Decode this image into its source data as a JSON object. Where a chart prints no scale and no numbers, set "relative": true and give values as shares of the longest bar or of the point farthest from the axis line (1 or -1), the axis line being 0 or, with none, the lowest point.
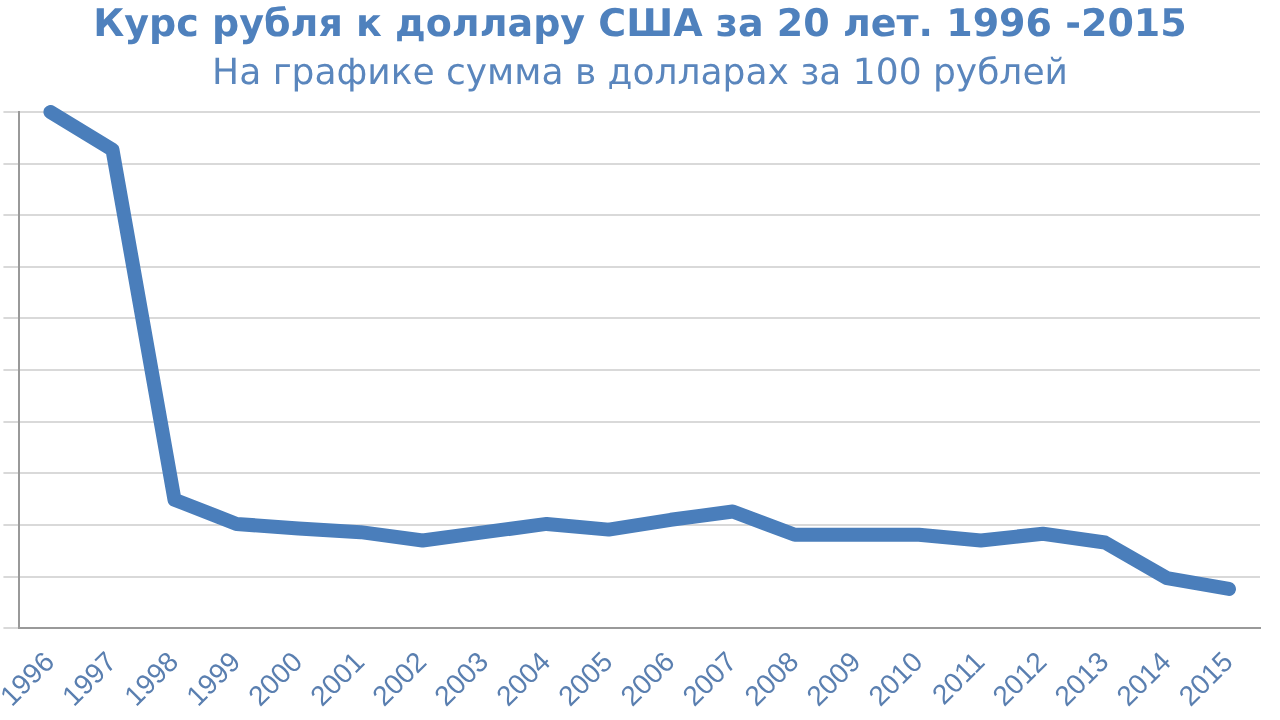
{
  "chart_data": {
    "type": "line",
    "title": "Курс рубля к доллару США за 20 лет. 1996 -2015",
    "subtitle": "На графике сумма в долларах за 100 рублей",
    "categories": [
      "1996",
      "1997",
      "1998",
      "1999",
      "2000",
      "2001",
      "2002",
      "2003",
      "2004",
      "2005",
      "2006",
      "2007",
      "2008",
      "2009",
      "2010",
      "2011",
      "2012",
      "2013",
      "2014",
      "2015"
    ],
    "relative": true,
    "grid": "y",
    "legend": false,
    "marker": "none",
    "line_style": "solid",
    "series": [
      {
        "color": "#4a7ebb",
        "values": [
          1,
          0.927,
          0.249,
          0.202,
          0.193,
          0.186,
          0.17,
          0.186,
          0.202,
          0.191,
          0.21,
          0.226,
          0.181,
          0.181,
          0.181,
          0.17,
          0.183,
          0.166,
          0.097,
          0.076
        ]
      }
    ]
  }
}
